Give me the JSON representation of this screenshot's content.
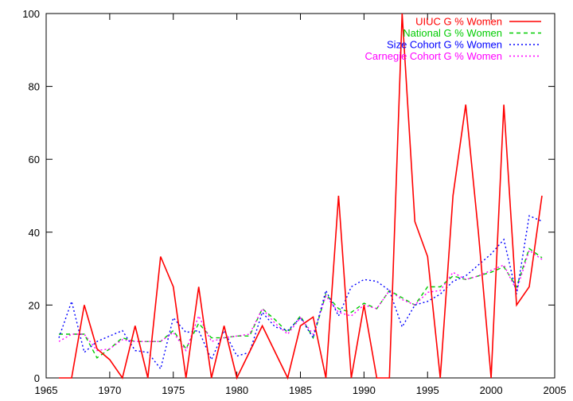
{
  "chart_data": {
    "type": "line",
    "title": "",
    "xlabel": "",
    "ylabel": "",
    "xlim": [
      1965,
      2005
    ],
    "ylim": [
      0,
      100
    ],
    "x_ticks": [
      1965,
      1970,
      1975,
      1980,
      1985,
      1990,
      1995,
      2000,
      2005
    ],
    "y_ticks": [
      0,
      20,
      40,
      60,
      80,
      100
    ],
    "x_tick_labels": [
      "1965",
      "1970",
      "1975",
      "1980",
      "1985",
      "1990",
      "1995",
      "2000",
      "2005"
    ],
    "y_tick_labels": [
      "0",
      "20",
      "40",
      "60",
      "80",
      "100"
    ],
    "grid": false,
    "legend_position": "top-right",
    "series": [
      {
        "name": "UIUC G % Women",
        "color": "#ff0000",
        "style": "solid",
        "x": [
          1966,
          1967,
          1968,
          1969,
          1970,
          1971,
          1972,
          1973,
          1974,
          1975,
          1976,
          1977,
          1978,
          1979,
          1980,
          1982,
          1984,
          1985,
          1986,
          1987,
          1988,
          1989,
          1990,
          1991,
          1992,
          1993,
          1994,
          1995,
          1996,
          1997,
          1998,
          1999,
          2000,
          2001,
          2002,
          2003,
          2004
        ],
        "values": [
          0,
          0,
          20,
          8,
          5,
          0,
          14.3,
          0,
          33.3,
          25,
          0,
          25,
          0,
          14.3,
          0,
          14.3,
          0,
          14.3,
          16.7,
          0,
          50,
          0,
          20,
          0,
          0,
          100,
          42.9,
          33.3,
          0,
          50,
          75,
          40,
          0,
          75,
          20,
          25,
          50
        ]
      },
      {
        "name": "National G % Women",
        "color": "#00cc00",
        "style": "dashed",
        "x": [
          1966,
          1967,
          1968,
          1969,
          1970,
          1971,
          1972,
          1973,
          1974,
          1975,
          1976,
          1977,
          1978,
          1979,
          1980,
          1981,
          1982,
          1983,
          1984,
          1985,
          1986,
          1987,
          1988,
          1989,
          1990,
          1991,
          1992,
          1993,
          1994,
          1995,
          1996,
          1997,
          1998,
          1999,
          2000,
          2001,
          2002,
          2003,
          2004
        ],
        "values": [
          12,
          12,
          12,
          5.5,
          8,
          11,
          10,
          10,
          10,
          13,
          8,
          15,
          11,
          11,
          11.5,
          11.5,
          19,
          16,
          12.5,
          17,
          11,
          23,
          19,
          18,
          20.5,
          19,
          24,
          22,
          20,
          25,
          25,
          28,
          27,
          28,
          29,
          30.5,
          25,
          35.5,
          33
        ]
      },
      {
        "name": "Size Cohort G % Women",
        "color": "#0000ff",
        "style": "dotted",
        "x": [
          1966,
          1967,
          1968,
          1969,
          1970,
          1971,
          1972,
          1973,
          1974,
          1975,
          1976,
          1977,
          1978,
          1979,
          1980,
          1981,
          1982,
          1983,
          1984,
          1985,
          1986,
          1987,
          1988,
          1989,
          1990,
          1991,
          1992,
          1993,
          1994,
          1995,
          1996,
          1997,
          1998,
          1999,
          2000,
          2001,
          2002,
          2003,
          2004
        ],
        "values": [
          11,
          21,
          7,
          10,
          11.5,
          13,
          7.5,
          7,
          2.5,
          16.5,
          12.5,
          13,
          5,
          13,
          6,
          7,
          18,
          14,
          13,
          16.5,
          11,
          24,
          17,
          25,
          27,
          26.5,
          24,
          14,
          20,
          21,
          23,
          26.5,
          28,
          31,
          34,
          38,
          23,
          44.5,
          43
        ]
      },
      {
        "name": "Carnegie Cohort G % Women",
        "color": "#ff00ff",
        "style": "dotted",
        "x": [
          1966,
          1967,
          1968,
          1969,
          1970,
          1971,
          1972,
          1973,
          1974,
          1975,
          1976,
          1977,
          1978,
          1979,
          1980,
          1981,
          1982,
          1983,
          1984,
          1985,
          1986,
          1987,
          1988,
          1989,
          1990,
          1991,
          1992,
          1993,
          1994,
          1995,
          1996,
          1997,
          1998,
          1999,
          2000,
          2001,
          2002,
          2003,
          2004
        ],
        "values": [
          10,
          12,
          12,
          7.5,
          8,
          10.5,
          10,
          10,
          10,
          12.5,
          7.5,
          17,
          10,
          11,
          11.5,
          12,
          19,
          15,
          12,
          16.5,
          12,
          22.5,
          18,
          17,
          20,
          19,
          24,
          21.5,
          20,
          23.5,
          24,
          29,
          27,
          28,
          29.5,
          31,
          24,
          35,
          32.5
        ]
      }
    ]
  }
}
